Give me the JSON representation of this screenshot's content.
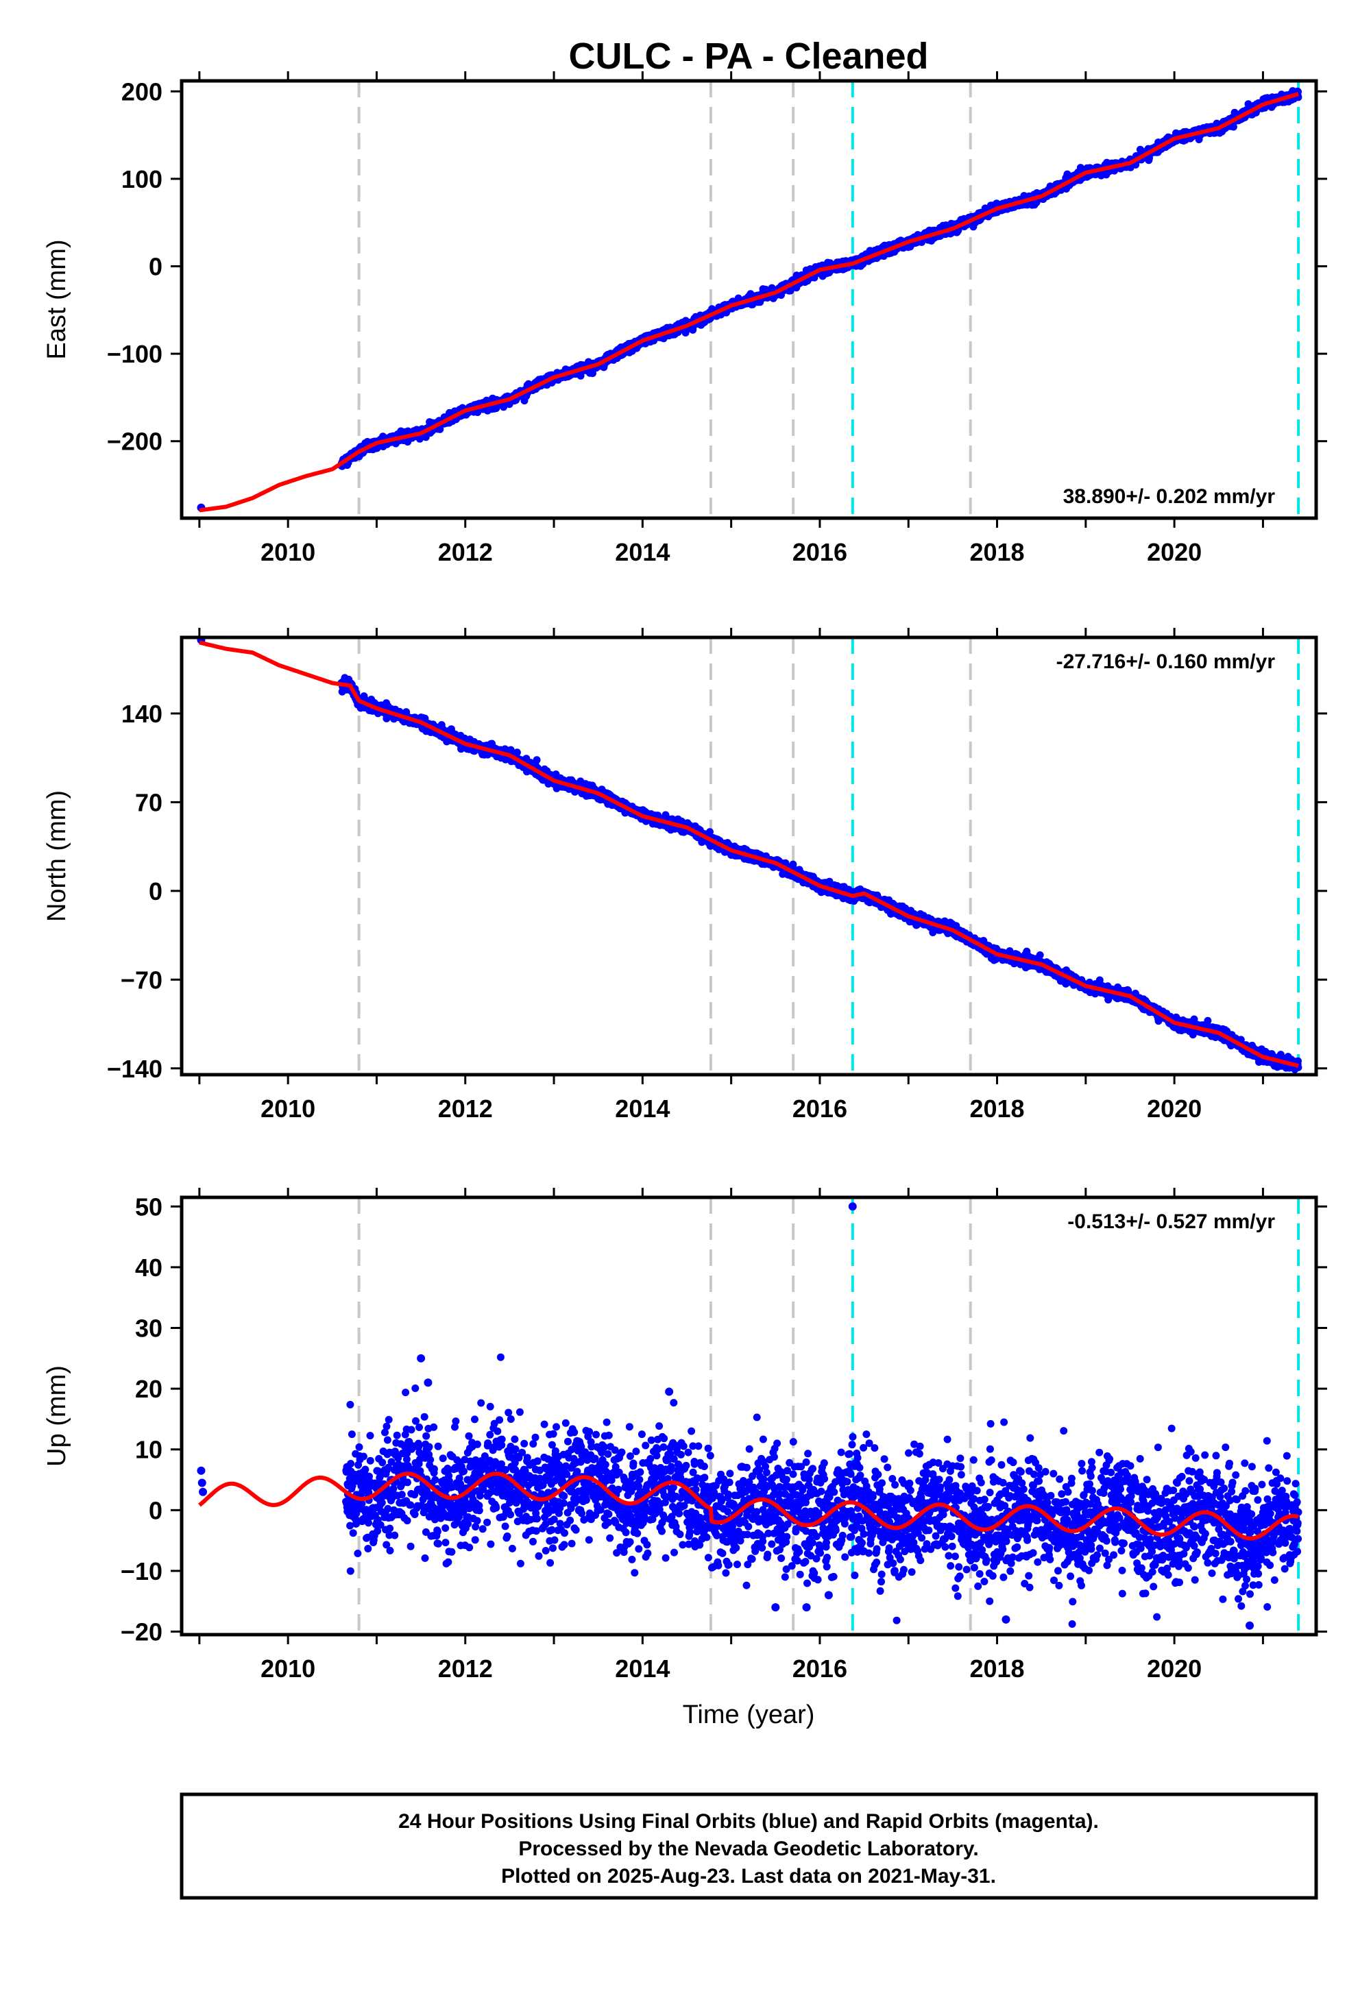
{
  "title": "CULC  - PA - Cleaned",
  "colors": {
    "final_orbits": "#0000ff",
    "model_fit": "#ff0000",
    "vline_gray": "#c8c8c8",
    "vline_cyan": "#00e5e5"
  },
  "xlabel": "Time (year)",
  "footer": {
    "line1": "24 Hour Positions Using Final Orbits (blue) and Rapid Orbits (magenta).",
    "line2": "Processed by the Nevada Geodetic Laboratory.",
    "line3": "Plotted on 2025-Aug-23. Last data on 2021-May-31."
  },
  "chart_data": [
    {
      "type": "scatter",
      "component": "east",
      "ylabel": "East (mm)",
      "rate": "38.890+/- 0.202 mm/yr",
      "xlim": [
        2008.8,
        2021.6
      ],
      "ylim": [
        -288,
        212
      ],
      "yticks": [
        -200,
        -100,
        0,
        100,
        200
      ],
      "xticks": [
        2010,
        2012,
        2014,
        2016,
        2018,
        2020
      ],
      "gray_lines": [
        2010.8,
        2014.77,
        2015.7,
        2017.7
      ],
      "cyan_lines": [
        2016.37,
        2021.4
      ],
      "fit": [
        [
          2009.0,
          -279
        ],
        [
          2009.3,
          -275
        ],
        [
          2009.6,
          -265
        ],
        [
          2009.9,
          -250
        ],
        [
          2010.2,
          -240
        ],
        [
          2010.5,
          -232
        ],
        [
          2010.8,
          -212
        ],
        [
          2011.0,
          -202
        ],
        [
          2011.5,
          -191
        ],
        [
          2012.0,
          -165
        ],
        [
          2012.5,
          -152
        ],
        [
          2013.0,
          -127
        ],
        [
          2013.5,
          -112
        ],
        [
          2014.0,
          -85
        ],
        [
          2014.5,
          -68
        ],
        [
          2015.0,
          -45
        ],
        [
          2015.5,
          -30
        ],
        [
          2016.0,
          -4
        ],
        [
          2016.37,
          3
        ],
        [
          2017.0,
          28
        ],
        [
          2017.5,
          43
        ],
        [
          2018.0,
          66
        ],
        [
          2018.5,
          80
        ],
        [
          2019.0,
          107
        ],
        [
          2019.5,
          118
        ],
        [
          2020.0,
          146
        ],
        [
          2020.5,
          158
        ],
        [
          2021.0,
          185
        ],
        [
          2021.4,
          197
        ]
      ],
      "series": [
        {
          "name": "final",
          "points": [
            [
              2009.02,
              -276
            ],
            [
              2021.38,
              198
            ]
          ]
        }
      ],
      "daily_noise_mm": 2.5,
      "daily_start": 2010.6
    },
    {
      "type": "scatter",
      "component": "north",
      "ylabel": "North (mm)",
      "rate": "-27.716+/- 0.160 mm/yr",
      "xlim": [
        2008.8,
        2021.6
      ],
      "ylim": [
        -145,
        200
      ],
      "yticks": [
        -140,
        -70,
        0,
        70,
        140
      ],
      "xticks": [
        2010,
        2012,
        2014,
        2016,
        2018,
        2020
      ],
      "gray_lines": [
        2010.8,
        2014.77,
        2015.7,
        2017.7
      ],
      "cyan_lines": [
        2016.37,
        2021.4
      ],
      "fit": [
        [
          2009.0,
          196
        ],
        [
          2009.3,
          191
        ],
        [
          2009.6,
          188
        ],
        [
          2009.9,
          178
        ],
        [
          2010.2,
          171
        ],
        [
          2010.5,
          164
        ],
        [
          2010.7,
          162
        ],
        [
          2010.8,
          150
        ],
        [
          2011.0,
          144
        ],
        [
          2011.5,
          133
        ],
        [
          2012.0,
          116
        ],
        [
          2012.5,
          107
        ],
        [
          2013.0,
          87
        ],
        [
          2013.5,
          77
        ],
        [
          2014.0,
          59
        ],
        [
          2014.5,
          50
        ],
        [
          2015.0,
          32
        ],
        [
          2015.5,
          22
        ],
        [
          2016.0,
          4
        ],
        [
          2016.37,
          -4
        ],
        [
          2016.5,
          -2
        ],
        [
          2017.0,
          -20
        ],
        [
          2017.5,
          -31
        ],
        [
          2018.0,
          -50
        ],
        [
          2018.5,
          -58
        ],
        [
          2019.0,
          -75
        ],
        [
          2019.5,
          -83
        ],
        [
          2020.0,
          -104
        ],
        [
          2020.5,
          -112
        ],
        [
          2021.0,
          -131
        ],
        [
          2021.4,
          -138
        ]
      ],
      "series": [
        {
          "name": "final",
          "points": [
            [
              2009.02,
              198
            ],
            [
              2021.38,
              -137
            ]
          ]
        }
      ],
      "daily_noise_mm": 2.0,
      "daily_start": 2010.6
    },
    {
      "type": "scatter",
      "component": "up",
      "ylabel": "Up (mm)",
      "rate": "-0.513+/- 0.527 mm/yr",
      "xlim": [
        2008.8,
        2021.6
      ],
      "ylim": [
        -20.5,
        51.5
      ],
      "yticks": [
        -20,
        -10,
        0,
        10,
        20,
        30,
        40,
        50
      ],
      "xticks": [
        2010,
        2012,
        2014,
        2016,
        2018,
        2020
      ],
      "gray_lines": [
        2010.8,
        2014.77,
        2015.7,
        2017.7
      ],
      "cyan_lines": [
        2016.37,
        2021.4
      ],
      "trend": [
        [
          2009.0,
          2
        ],
        [
          2011.0,
          4
        ],
        [
          2012.5,
          4
        ],
        [
          2014.0,
          3
        ],
        [
          2014.77,
          2
        ],
        [
          2014.78,
          0
        ],
        [
          2017.0,
          -1
        ],
        [
          2019.0,
          -1.5
        ],
        [
          2021.4,
          -3
        ]
      ],
      "seasonal_amplitude_mm": 2,
      "series": [
        {
          "name": "final",
          "points": [
            [
              2009.02,
              6.5
            ],
            [
              2009.03,
              4.5
            ],
            [
              2009.04,
              3
            ],
            [
              2016.37,
              50
            ],
            [
              2011.5,
              25
            ],
            [
              2011.58,
              21
            ],
            [
              2020.85,
              -19
            ],
            [
              2015.5,
              -16
            ],
            [
              2015.85,
              -16
            ],
            [
              2016.1,
              -14
            ],
            [
              2018.1,
              -18
            ],
            [
              2014.3,
              19.5
            ]
          ]
        }
      ],
      "daily_noise_mm": 4.5,
      "daily_start": 2010.65
    }
  ]
}
